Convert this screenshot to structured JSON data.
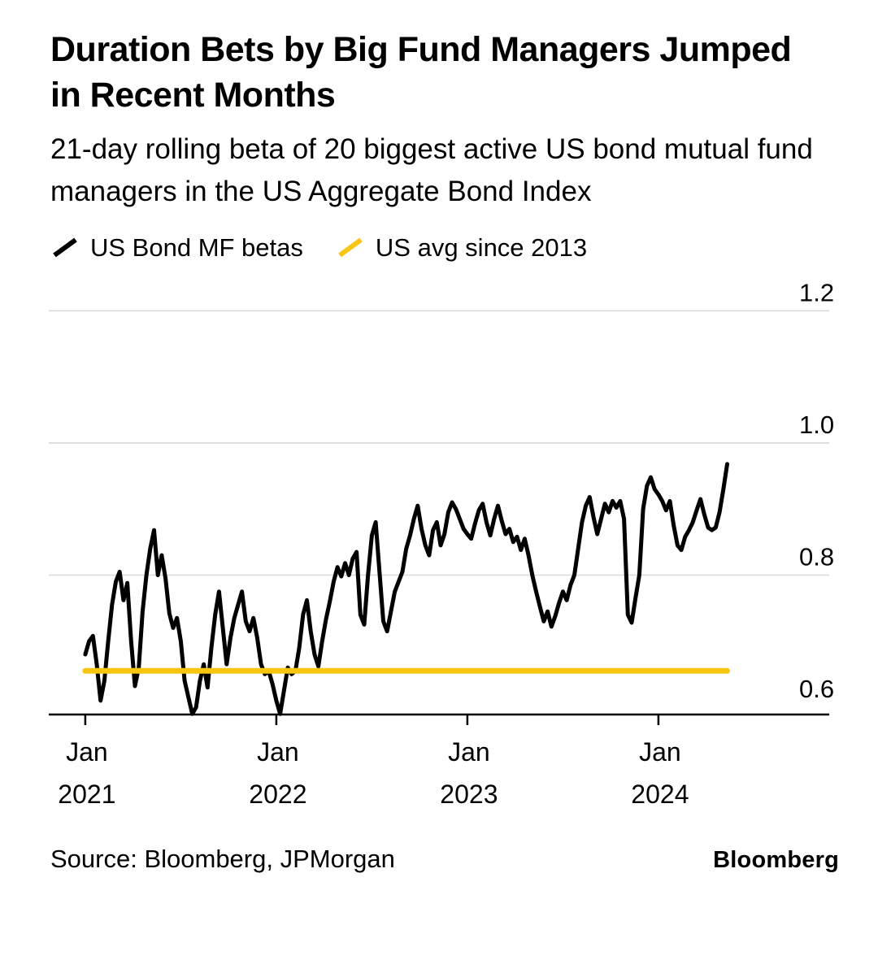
{
  "title": "Duration Bets by Big Fund Managers Jumped in Recent Months",
  "subtitle": "21-day rolling beta of 20 biggest active US bond mutual fund managers in the US Aggregate Bond Index",
  "legend": [
    {
      "label": "US Bond MF betas",
      "color": "#000000"
    },
    {
      "label": "US avg since 2013",
      "color": "#F9C513"
    }
  ],
  "footer": {
    "source": "Source: Bloomberg, JPMorgan",
    "brand": "Bloomberg"
  },
  "colors": {
    "background": "#FFFFFF",
    "text": "#000000",
    "gridline": "#D9D9D9",
    "axis": "#000000",
    "series_main": "#000000",
    "series_avg": "#F9C513"
  },
  "chart_data": {
    "type": "line",
    "title": "Duration Bets by Big Fund Managers Jumped in Recent Months",
    "subtitle": "21-day rolling beta of 20 biggest active US bond mutual fund managers in the US Aggregate Bond Index",
    "legend_position": "top",
    "grid": "horizontal",
    "xlim": [
      2020.809,
      2024.894
    ],
    "ylim": [
      0.589,
      1.268
    ],
    "y_ticks": [
      {
        "value": 0.6,
        "label": "0.6",
        "gridline": false
      },
      {
        "value": 0.8,
        "label": "0.8",
        "gridline": true
      },
      {
        "value": 1.0,
        "label": "1.0",
        "gridline": true
      },
      {
        "value": 1.2,
        "label": "1.2",
        "gridline": true
      }
    ],
    "x_ticks": [
      {
        "value": 2021,
        "line1": "Jan",
        "line2": "2021"
      },
      {
        "value": 2022,
        "line1": "Jan",
        "line2": "2022"
      },
      {
        "value": 2023,
        "line1": "Jan",
        "line2": "2023"
      },
      {
        "value": 2024,
        "line1": "Jan",
        "line2": "2024"
      }
    ],
    "series": [
      {
        "name": "US Bond MF betas",
        "color": "#000000",
        "width": 5,
        "x_start": 2021.0,
        "x_step": 0.02,
        "y": [
          0.68,
          0.7,
          0.708,
          0.665,
          0.61,
          0.64,
          0.7,
          0.755,
          0.79,
          0.805,
          0.762,
          0.788,
          0.7,
          0.632,
          0.66,
          0.745,
          0.8,
          0.84,
          0.868,
          0.8,
          0.83,
          0.795,
          0.742,
          0.72,
          0.735,
          0.7,
          0.64,
          0.615,
          0.59,
          0.6,
          0.64,
          0.665,
          0.63,
          0.69,
          0.74,
          0.775,
          0.72,
          0.665,
          0.705,
          0.735,
          0.755,
          0.775,
          0.73,
          0.715,
          0.735,
          0.705,
          0.665,
          0.65,
          0.655,
          0.635,
          0.61,
          0.59,
          0.625,
          0.66,
          0.65,
          0.655,
          0.69,
          0.74,
          0.762,
          0.715,
          0.68,
          0.662,
          0.7,
          0.733,
          0.76,
          0.79,
          0.812,
          0.798,
          0.818,
          0.8,
          0.825,
          0.835,
          0.74,
          0.725,
          0.8,
          0.86,
          0.88,
          0.805,
          0.73,
          0.715,
          0.745,
          0.775,
          0.79,
          0.805,
          0.84,
          0.86,
          0.885,
          0.905,
          0.87,
          0.845,
          0.83,
          0.868,
          0.88,
          0.845,
          0.862,
          0.895,
          0.91,
          0.9,
          0.885,
          0.87,
          0.862,
          0.855,
          0.878,
          0.898,
          0.908,
          0.88,
          0.86,
          0.885,
          0.905,
          0.882,
          0.862,
          0.87,
          0.85,
          0.858,
          0.838,
          0.855,
          0.83,
          0.8,
          0.775,
          0.752,
          0.73,
          0.745,
          0.722,
          0.738,
          0.758,
          0.775,
          0.762,
          0.785,
          0.8,
          0.84,
          0.88,
          0.905,
          0.918,
          0.888,
          0.862,
          0.885,
          0.908,
          0.895,
          0.912,
          0.902,
          0.912,
          0.885,
          0.74,
          0.728,
          0.765,
          0.8,
          0.9,
          0.935,
          0.948,
          0.93,
          0.922,
          0.912,
          0.898,
          0.912,
          0.875,
          0.845,
          0.838,
          0.858,
          0.868,
          0.88,
          0.898,
          0.915,
          0.892,
          0.872,
          0.868,
          0.872,
          0.895,
          0.93,
          0.968
        ]
      },
      {
        "name": "US avg since 2013",
        "color": "#F9C513",
        "width": 7,
        "x_start": 2021.0,
        "x_end": 2024.36,
        "constant": 0.655
      }
    ]
  }
}
